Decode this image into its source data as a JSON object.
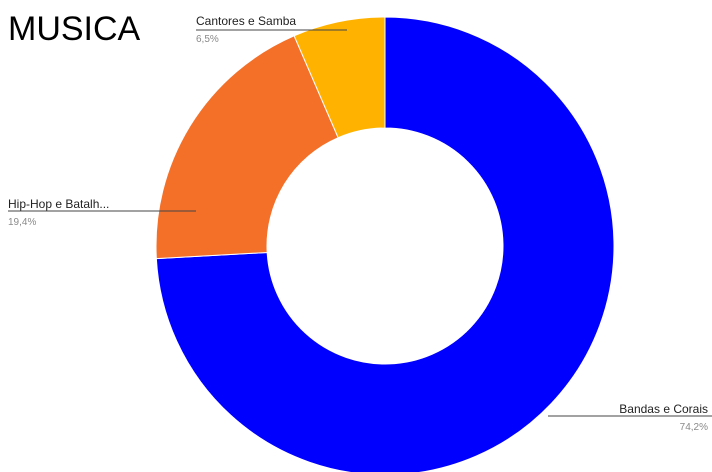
{
  "chart_data": {
    "type": "pie",
    "donut": true,
    "title": "MUSICA",
    "start_angle_deg": 0,
    "direction": "clockwise",
    "slices": [
      {
        "label": "Bandas e Corais",
        "value": 74.2,
        "value_text": "74,2%",
        "color": "#0000ff"
      },
      {
        "label": "Hip-Hop e Batalh...",
        "value": 19.4,
        "value_text": "19,4%",
        "color": "#f47029"
      },
      {
        "label": "Cantores e Samba",
        "value": 6.5,
        "value_text": "6,5%",
        "color": "#ffb300"
      }
    ]
  }
}
